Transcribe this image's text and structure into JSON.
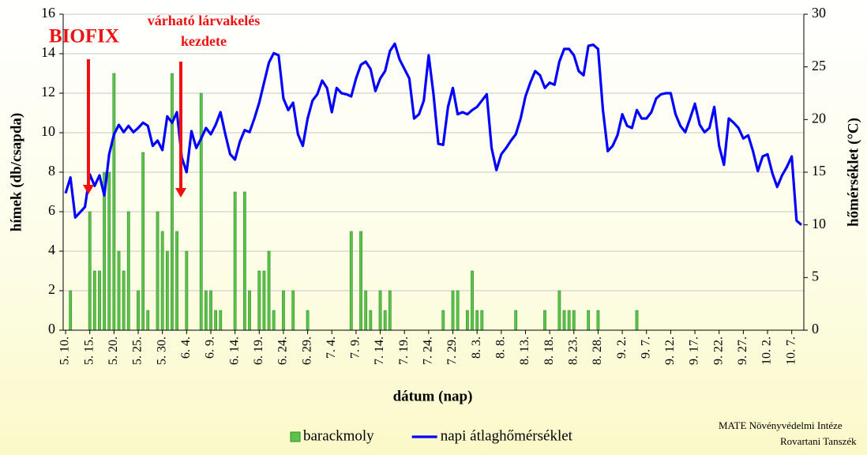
{
  "chart_data": {
    "type": "bar",
    "xlabel": "dátum (nap)",
    "ylabel": "hímek (db/csapda)",
    "y2label": "hőmérséklet (°C)",
    "annotations": [
      "BIOFIX",
      "várható lárvakelés",
      "kezdete"
    ],
    "credits": [
      "MATE Növényvédelmi Intéze",
      "Rovartani Tanszék"
    ],
    "grid": true,
    "legend": "bottom",
    "ylim": [
      0,
      16
    ],
    "yticks": [
      0,
      2,
      4,
      6,
      8,
      10,
      12,
      14,
      16
    ],
    "y2lim": [
      0,
      30
    ],
    "y2ticks": [
      0,
      5,
      10,
      15,
      20,
      25,
      30
    ],
    "categories": [
      "5. 10.",
      null,
      null,
      null,
      null,
      "5. 15.",
      null,
      null,
      null,
      null,
      "5. 20.",
      null,
      null,
      null,
      null,
      "5. 25.",
      null,
      null,
      null,
      null,
      "5. 30.",
      null,
      null,
      null,
      null,
      "6. 4.",
      null,
      null,
      null,
      null,
      "6. 9.",
      null,
      null,
      null,
      null,
      "6. 14.",
      null,
      null,
      null,
      null,
      "6. 19.",
      null,
      null,
      null,
      null,
      "6. 24.",
      null,
      null,
      null,
      null,
      "6. 29.",
      null,
      null,
      null,
      null,
      "7. 4.",
      null,
      null,
      null,
      null,
      "7. 9.",
      null,
      null,
      null,
      null,
      "7. 14.",
      null,
      null,
      null,
      null,
      "7. 19.",
      null,
      null,
      null,
      null,
      "7. 24.",
      null,
      null,
      null,
      null,
      "7. 29.",
      null,
      null,
      null,
      null,
      "8. 3.",
      null,
      null,
      null,
      null,
      "8. 8.",
      null,
      null,
      null,
      null,
      "8. 13.",
      null,
      null,
      null,
      null,
      "8. 18.",
      null,
      null,
      null,
      null,
      "8. 23.",
      null,
      null,
      null,
      null,
      "8. 28.",
      null,
      null,
      null,
      null,
      "9. 2.",
      null,
      null,
      null,
      null,
      "9. 7.",
      null,
      null,
      null,
      null,
      "9. 12.",
      null,
      null,
      null,
      null,
      "9. 17.",
      null,
      null,
      null,
      null,
      "9. 22.",
      null,
      null,
      null,
      null,
      "9. 27.",
      null,
      null,
      null,
      null,
      "10. 2.",
      null,
      null,
      null,
      null,
      "10. 7.",
      null,
      null
    ],
    "series": [
      {
        "name": "barackmoly",
        "type": "bar",
        "color": "#5cc24a",
        "values": [
          0,
          2,
          0,
          0,
          0,
          6,
          3,
          3,
          8,
          8,
          13,
          4,
          3,
          6,
          0,
          2,
          9,
          1,
          0,
          6,
          5,
          4,
          13,
          5,
          0,
          4,
          0,
          0,
          12,
          2,
          2,
          1,
          1,
          0,
          0,
          7,
          0,
          7,
          2,
          0,
          3,
          3,
          4,
          1,
          0,
          2,
          0,
          2,
          0,
          0,
          1,
          0,
          0,
          0,
          0,
          0,
          0,
          0,
          0,
          5,
          0,
          5,
          2,
          1,
          0,
          2,
          1,
          2,
          0,
          0,
          0,
          0,
          0,
          0,
          0,
          0,
          0,
          0,
          1,
          0,
          2,
          2,
          0,
          1,
          3,
          1,
          1,
          0,
          0,
          0,
          0,
          0,
          0,
          1,
          0,
          0,
          0,
          0,
          0,
          1,
          0,
          0,
          2,
          1,
          1,
          1,
          0,
          0,
          1,
          0,
          1,
          0,
          0,
          0,
          0,
          0,
          0,
          0,
          1,
          0,
          0,
          0,
          0,
          0,
          0,
          0,
          0,
          0,
          0,
          0,
          0,
          0,
          0,
          0,
          0,
          0,
          0,
          0,
          0,
          0,
          0,
          0,
          0,
          0,
          0,
          0,
          0,
          0,
          0,
          0,
          0,
          0,
          0
        ]
      },
      {
        "name": "napi átlaghőmérséklet",
        "type": "line",
        "axis": "y2",
        "color": "#0000ff",
        "values": [
          13,
          14.5,
          10.7,
          11.2,
          11.7,
          14.8,
          13.7,
          14.7,
          12.8,
          16.7,
          18.6,
          19.5,
          18.8,
          19.4,
          18.8,
          19.2,
          19.7,
          19.4,
          17.5,
          18,
          17.1,
          20.3,
          19.7,
          20.7,
          16.4,
          15,
          18.9,
          17.3,
          18.2,
          19.2,
          18.6,
          19.5,
          20.7,
          18.6,
          16.7,
          16.2,
          17.9,
          19,
          18.8,
          20.1,
          21.6,
          23.5,
          25.4,
          26.3,
          26.1,
          22,
          20.9,
          21.6,
          18.6,
          17.5,
          20.1,
          21.8,
          22.4,
          23.7,
          23,
          20.7,
          23,
          22.5,
          22.4,
          22.2,
          23.9,
          25.2,
          25.5,
          24.8,
          22.7,
          23.9,
          24.6,
          26.5,
          27.2,
          25.7,
          24.8,
          23.9,
          20.1,
          20.5,
          21.8,
          26.1,
          22.4,
          17.7,
          17.6,
          21.2,
          23,
          20.5,
          20.7,
          20.5,
          20.9,
          21.2,
          21.8,
          22.4,
          17.3,
          15.2,
          16.7,
          17.3,
          18,
          18.6,
          20.1,
          22.2,
          23.5,
          24.6,
          24.2,
          23,
          23.5,
          23.3,
          25.5,
          26.7,
          26.7,
          26.1,
          24.6,
          24.2,
          27,
          27.1,
          26.7,
          20.9,
          17,
          17.5,
          18.5,
          20.5,
          19.4,
          19.2,
          20.9,
          20.1,
          20.1,
          20.7,
          22,
          22.4,
          22.5,
          22.5,
          20.5,
          19.4,
          18.8,
          20.1,
          21.5,
          19.5,
          18.8,
          19.2,
          21.2,
          17.5,
          15.7,
          20.1,
          19.7,
          19.2,
          18.2,
          18.5,
          17,
          15.1,
          16.5,
          16.7,
          14.9,
          13.6,
          14.7,
          15.5,
          16.5,
          10.4,
          10
        ]
      }
    ]
  }
}
